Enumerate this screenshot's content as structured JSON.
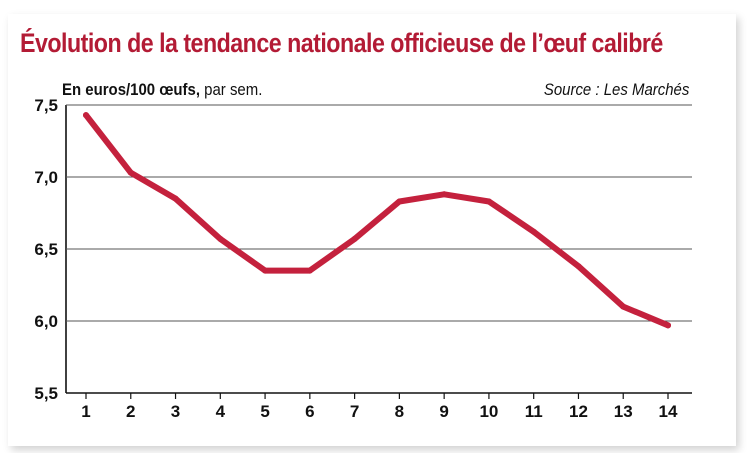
{
  "chart_data": {
    "type": "line",
    "title": "Évolution de la tendance nationale officieuse de l’œuf calibré",
    "subtitle_bold": "En euros/100 œufs,",
    "subtitle_rest": " par sem.",
    "source": "Source : Les Marchés",
    "x": [
      1,
      2,
      3,
      4,
      5,
      6,
      7,
      8,
      9,
      10,
      11,
      12,
      13,
      14
    ],
    "x_tick_labels": [
      "1",
      "2",
      "3",
      "4",
      "5",
      "6",
      "7",
      "8",
      "9",
      "10",
      "11",
      "12",
      "13",
      "14"
    ],
    "y_tick_labels": [
      "7,5",
      "7,0",
      "6,5",
      "6,0",
      "5,5"
    ],
    "y_ticks": [
      7.5,
      7.0,
      6.5,
      6.0,
      5.5
    ],
    "series": [
      {
        "values": [
          7.43,
          7.03,
          6.85,
          6.57,
          6.35,
          6.35,
          6.57,
          6.83,
          6.88,
          6.83,
          6.62,
          6.38,
          6.1,
          5.97
        ]
      }
    ],
    "ylim": [
      5.5,
      7.5
    ],
    "grid": true,
    "line_color": "#c4213d"
  }
}
